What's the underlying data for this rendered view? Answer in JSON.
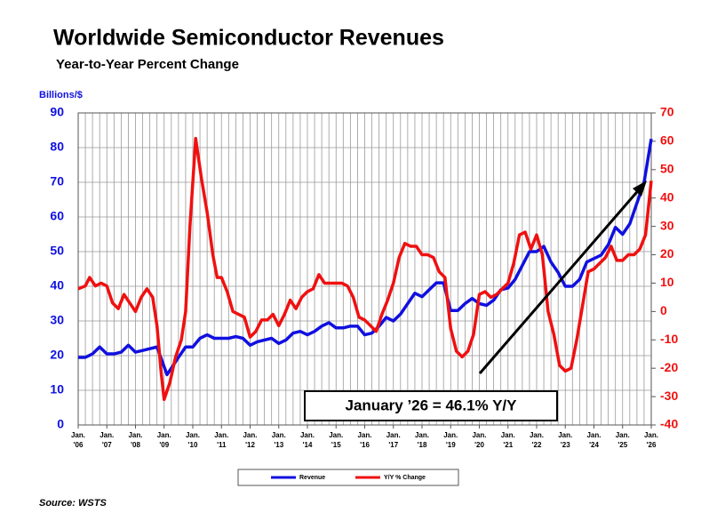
{
  "chart_data": {
    "type": "line",
    "title": "Worldwide Semiconductor Revenues",
    "subtitle": "Year-to-Year Percent Change",
    "y_label": "Billions/$",
    "annotation": "January ’26 = 46.1% Y/Y",
    "source": "Source: WSTS",
    "xlim": [
      2006,
      2026
    ],
    "xticks": [
      {
        "value": 2006,
        "label": "Jan. '06"
      },
      {
        "value": 2007,
        "label": "Jan. '07"
      },
      {
        "value": 2008,
        "label": "Jan. '08"
      },
      {
        "value": 2009,
        "label": "Jan. '09"
      },
      {
        "value": 2010,
        "label": "Jan. '10"
      },
      {
        "value": 2011,
        "label": "Jan. '11"
      },
      {
        "value": 2012,
        "label": "Jan. '12"
      },
      {
        "value": 2013,
        "label": "Jan. '13"
      },
      {
        "value": 2014,
        "label": "Jan. '14"
      },
      {
        "value": 2015,
        "label": "Jan. '15"
      },
      {
        "value": 2016,
        "label": "Jan. '16"
      },
      {
        "value": 2017,
        "label": "Jan. '17"
      },
      {
        "value": 2018,
        "label": "Jan. '18"
      },
      {
        "value": 2019,
        "label": "Jan. '19"
      },
      {
        "value": 2020,
        "label": "Jan. '20"
      },
      {
        "value": 2021,
        "label": "Jan. '21"
      },
      {
        "value": 2022,
        "label": "Jan. '22"
      },
      {
        "value": 2023,
        "label": "Jan. '23"
      },
      {
        "value": 2024,
        "label": "Jan. '24"
      },
      {
        "value": 2025,
        "label": "Jan. '25"
      },
      {
        "value": 2026,
        "label": "Jan. '26"
      }
    ],
    "xgrid": [
      2006,
      2006.25,
      2006.5,
      2006.75,
      2007,
      2007.25,
      2007.5,
      2007.75,
      2008,
      2008.25,
      2008.5,
      2008.75,
      2009,
      2009.25,
      2009.5,
      2009.75,
      2010,
      2010.25,
      2010.5,
      2010.75,
      2011,
      2011.25,
      2011.5,
      2011.75,
      2012,
      2012.25,
      2012.5,
      2012.75,
      2013,
      2013.25,
      2013.5,
      2013.75,
      2014,
      2014.25,
      2014.5,
      2014.75,
      2015,
      2015.25,
      2015.5,
      2015.75,
      2016,
      2016.25,
      2016.5,
      2016.75,
      2017,
      2017.25,
      2017.5,
      2017.75,
      2018,
      2018.25,
      2018.5,
      2018.75,
      2019,
      2019.25,
      2019.5,
      2019.75,
      2020,
      2020.25,
      2020.5,
      2020.75,
      2021,
      2021.25,
      2021.5,
      2021.75,
      2022,
      2022.25,
      2022.5,
      2022.75,
      2023,
      2023.25,
      2023.5,
      2023.75,
      2024,
      2024.25,
      2024.5,
      2024.75,
      2025,
      2025.25,
      2025.5,
      2025.75,
      2026
    ],
    "ylim": [
      0,
      90
    ],
    "yticks": [
      0,
      10,
      20,
      30,
      40,
      50,
      60,
      70,
      80,
      90
    ],
    "y2lim": [
      -40,
      70
    ],
    "y2ticks": [
      -40,
      -30,
      -20,
      -10,
      0,
      10,
      20,
      30,
      40,
      50,
      60,
      70
    ],
    "grid": true,
    "legend": "bottom",
    "series": [
      {
        "name": "Revenue",
        "color": "#1010e0",
        "x": [
          2006,
          2006.25,
          2006.5,
          2006.75,
          2007,
          2007.25,
          2007.5,
          2007.75,
          2008,
          2008.25,
          2008.5,
          2008.75,
          2009.1,
          2009.3,
          2009.5,
          2009.75,
          2010,
          2010.25,
          2010.5,
          2010.75,
          2011,
          2011.25,
          2011.5,
          2011.75,
          2012,
          2012.25,
          2012.5,
          2012.75,
          2013,
          2013.25,
          2013.5,
          2013.75,
          2014,
          2014.25,
          2014.5,
          2014.75,
          2015,
          2015.25,
          2015.5,
          2015.75,
          2016,
          2016.25,
          2016.5,
          2016.75,
          2017,
          2017.25,
          2017.5,
          2017.75,
          2018,
          2018.25,
          2018.5,
          2018.75,
          2019,
          2019.25,
          2019.5,
          2019.75,
          2020,
          2020.25,
          2020.5,
          2020.75,
          2021,
          2021.25,
          2021.5,
          2021.75,
          2022,
          2022.25,
          2022.5,
          2022.75,
          2023,
          2023.25,
          2023.5,
          2023.75,
          2024,
          2024.25,
          2024.5,
          2024.75,
          2025,
          2025.25,
          2025.5,
          2025.75,
          2026
        ],
        "values": [
          19.5,
          19.5,
          20.5,
          22.5,
          20.5,
          20.5,
          21,
          23,
          21,
          21.5,
          22,
          22.5,
          14.5,
          17,
          19.5,
          22.5,
          22.5,
          25,
          26,
          25,
          25,
          25,
          25.5,
          25,
          23,
          24,
          24.5,
          25,
          23.5,
          24.5,
          26.5,
          27,
          26,
          27,
          28.5,
          29.5,
          28,
          28,
          28.5,
          28.5,
          26,
          26.5,
          28.5,
          31,
          30,
          32,
          35,
          38,
          37,
          39,
          41,
          41,
          33,
          33,
          35,
          36.5,
          35,
          34.5,
          36,
          39,
          39.5,
          42,
          46,
          50,
          50,
          51.5,
          47,
          44,
          40,
          40,
          42,
          47,
          48,
          49,
          52,
          57,
          55,
          58,
          64,
          70,
          82.5
        ]
      },
      {
        "name": "Y/Y % Change",
        "color": "#f01010",
        "axis": "y2",
        "x": [
          2006,
          2006.25,
          2006.4,
          2006.6,
          2006.8,
          2007,
          2007.2,
          2007.4,
          2007.6,
          2007.8,
          2008,
          2008.2,
          2008.4,
          2008.6,
          2008.75,
          2008.9,
          2009,
          2009.2,
          2009.4,
          2009.6,
          2009.75,
          2009.9,
          2010.1,
          2010.3,
          2010.5,
          2010.7,
          2010.85,
          2011,
          2011.2,
          2011.4,
          2011.6,
          2011.8,
          2012,
          2012.2,
          2012.4,
          2012.6,
          2012.8,
          2013,
          2013.2,
          2013.4,
          2013.6,
          2013.8,
          2014,
          2014.2,
          2014.4,
          2014.6,
          2014.8,
          2015,
          2015.2,
          2015.4,
          2015.6,
          2015.8,
          2016,
          2016.2,
          2016.4,
          2016.6,
          2016.8,
          2017,
          2017.2,
          2017.4,
          2017.6,
          2017.8,
          2018,
          2018.2,
          2018.4,
          2018.6,
          2018.8,
          2019,
          2019.2,
          2019.4,
          2019.6,
          2019.8,
          2020,
          2020.2,
          2020.4,
          2020.6,
          2020.8,
          2021,
          2021.2,
          2021.4,
          2021.6,
          2021.8,
          2022,
          2022.2,
          2022.4,
          2022.6,
          2022.8,
          2023,
          2023.2,
          2023.4,
          2023.6,
          2023.8,
          2024,
          2024.2,
          2024.4,
          2024.6,
          2024.8,
          2025,
          2025.2,
          2025.4,
          2025.6,
          2025.8,
          2026
        ],
        "values": [
          8,
          9,
          12,
          9,
          10,
          9,
          3,
          1,
          6,
          3,
          0,
          5,
          8,
          5,
          -5,
          -22,
          -31,
          -25,
          -16,
          -10,
          0,
          30,
          61,
          47,
          35,
          20,
          12,
          12,
          7,
          0,
          -1,
          -2,
          -9,
          -7,
          -3,
          -3,
          -1,
          -5,
          -1,
          4,
          1,
          5,
          7,
          8,
          13,
          10,
          10,
          10,
          10,
          9,
          5,
          -2,
          -3,
          -5,
          -7,
          -1,
          4,
          10,
          19,
          24,
          23,
          23,
          20,
          20,
          19,
          14,
          12,
          -6,
          -14,
          -16,
          -14,
          -8,
          6,
          7,
          5,
          6,
          8,
          10,
          17,
          27,
          28,
          22,
          27,
          20,
          0,
          -8,
          -19,
          -21,
          -20,
          -10,
          2,
          14,
          15,
          17,
          19,
          23,
          18,
          18,
          20,
          20,
          22,
          27,
          46.1
        ]
      }
    ]
  }
}
